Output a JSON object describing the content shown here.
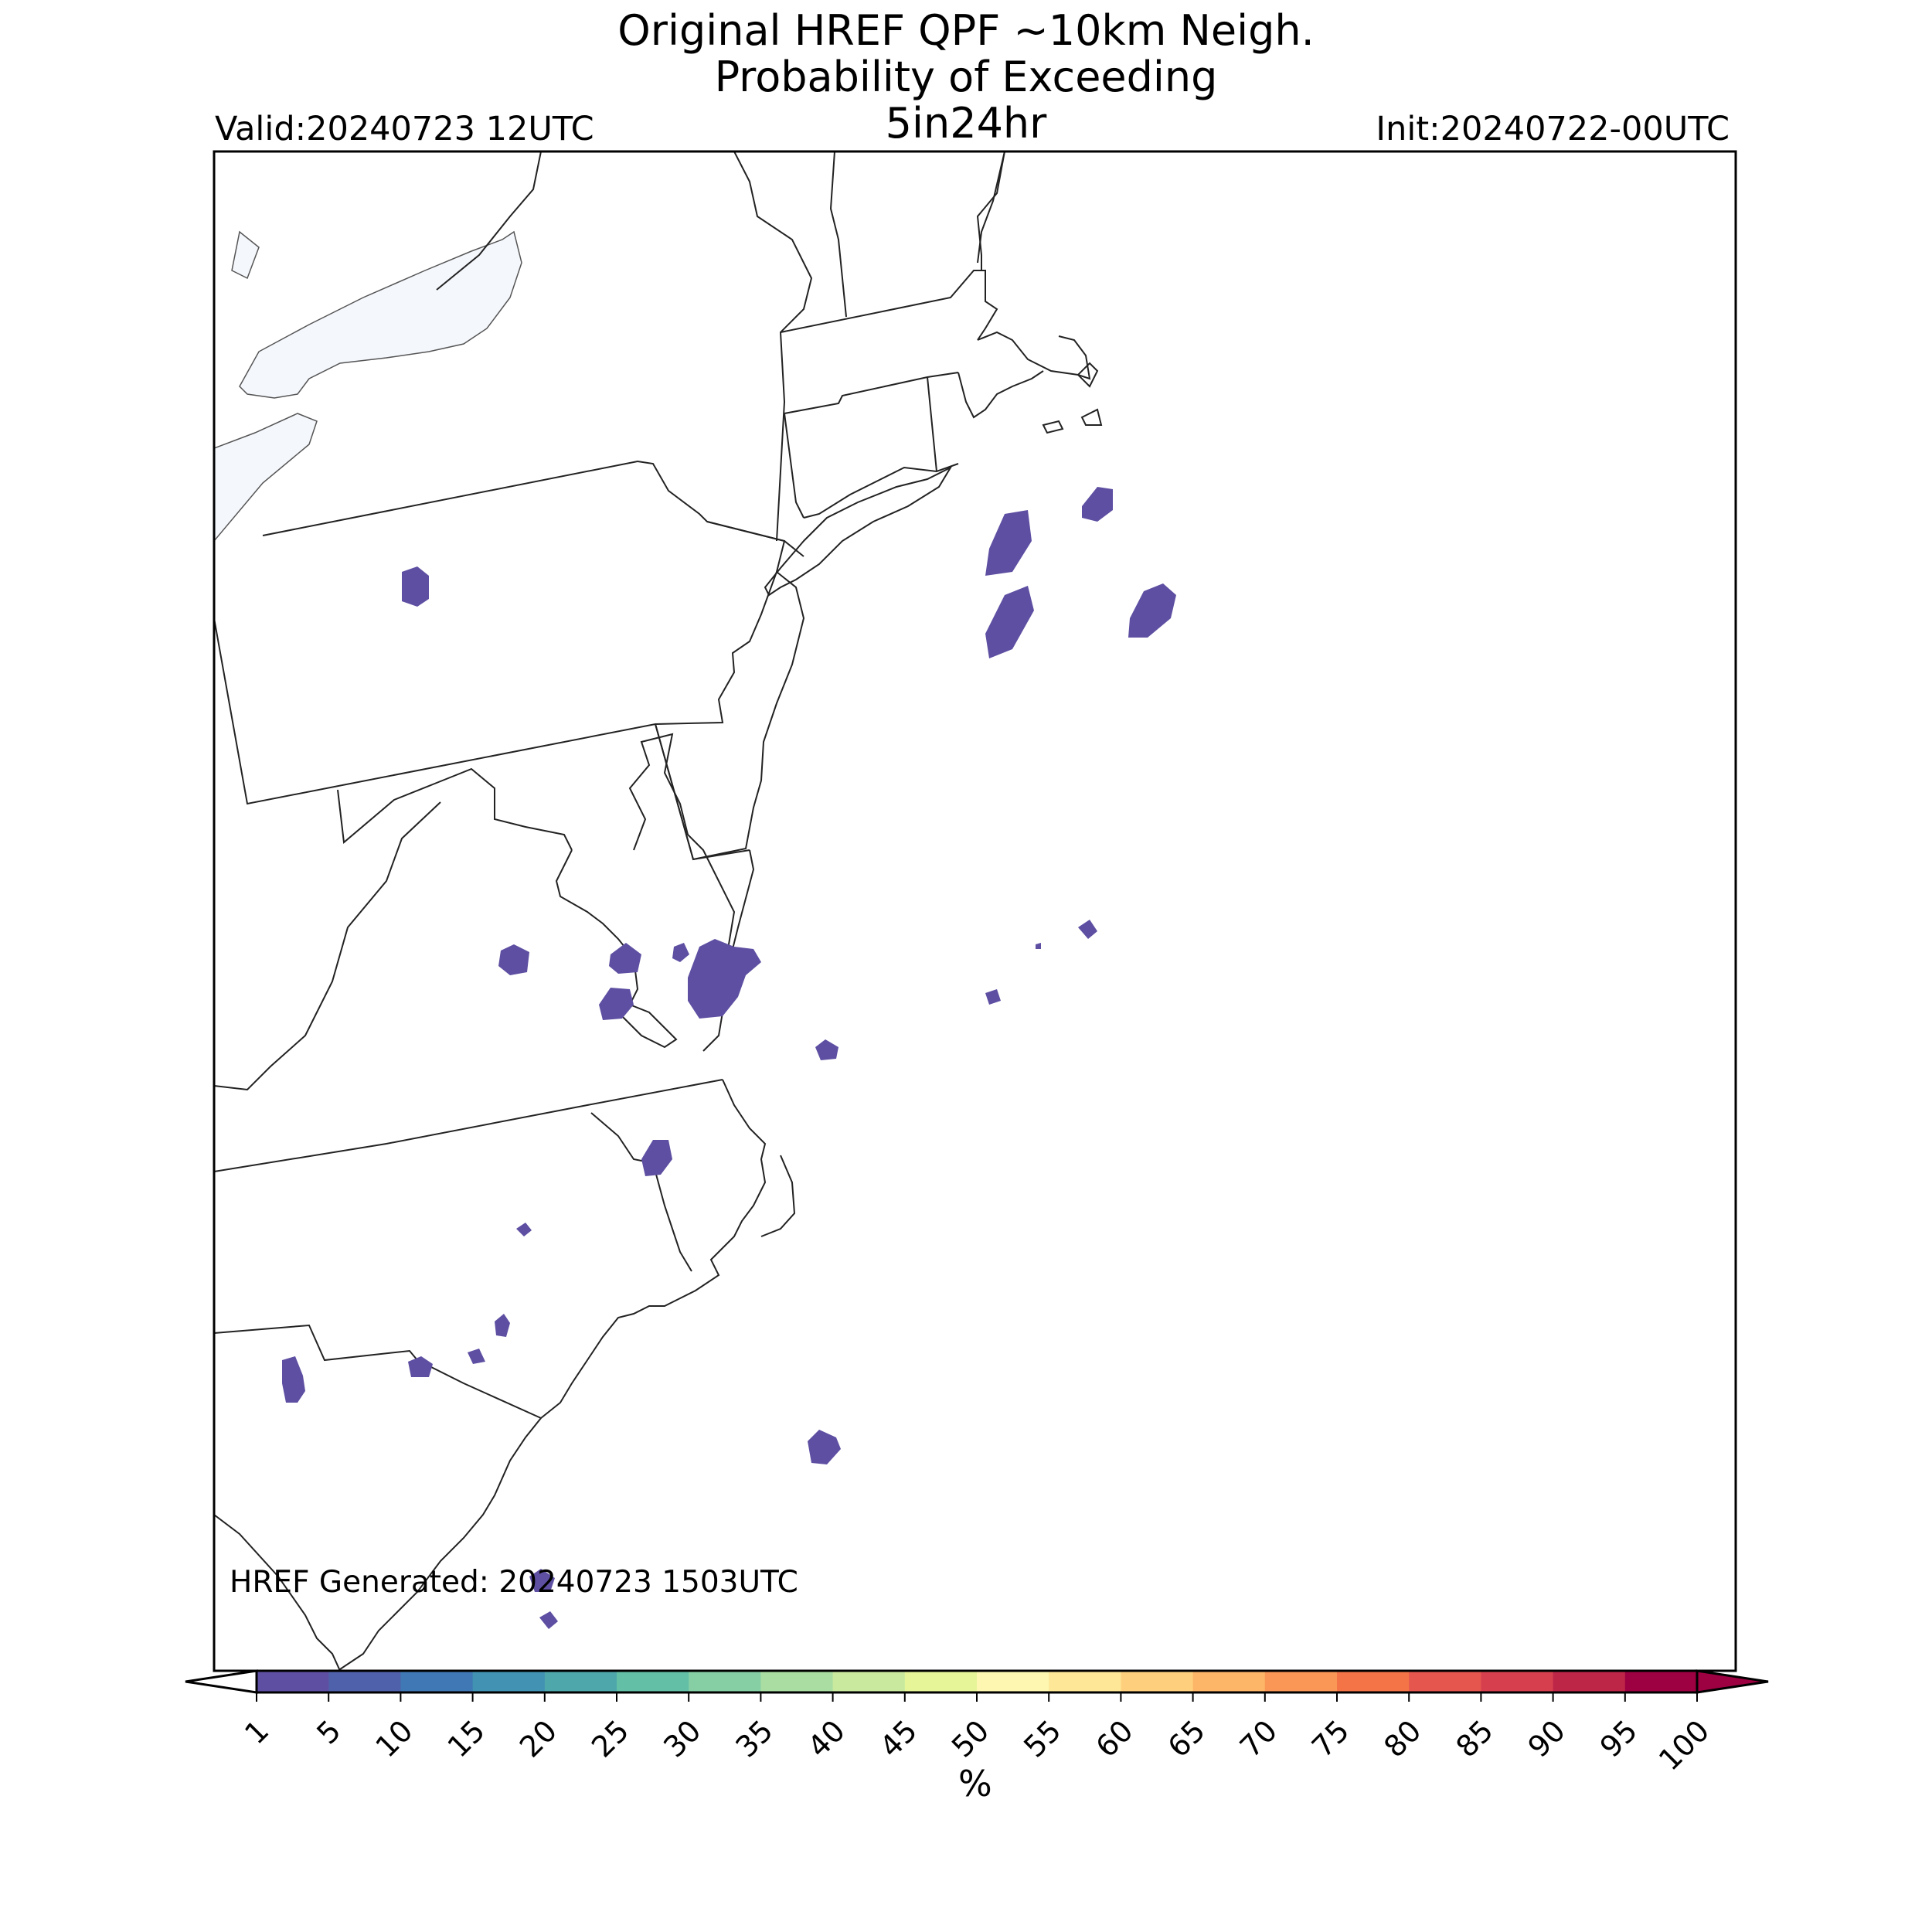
{
  "title": {
    "line1": "Original HREF QPF ~10km Neigh.",
    "line2": "Probability of Exceeding",
    "line3": "5in24hr"
  },
  "valid_text": "Valid:20240723 12UTC",
  "init_text": "Init:20240722-00UTC",
  "footer_text": "HREF Generated: 20240723 1503UTC",
  "colorbar": {
    "label": "%",
    "ticks": [
      "1",
      "5",
      "10",
      "15",
      "20",
      "25",
      "30",
      "35",
      "40",
      "45",
      "50",
      "55",
      "60",
      "65",
      "70",
      "75",
      "80",
      "85",
      "90",
      "95",
      "100"
    ],
    "colors": [
      "#5e4fa2",
      "#4f61aa",
      "#3f78b4",
      "#4292b3",
      "#4ea8ab",
      "#63bfa6",
      "#86cfa5",
      "#a9dda2",
      "#c9e99e",
      "#e6f598",
      "#fdf7b1",
      "#fee898",
      "#fed07e",
      "#fdb567",
      "#fa9656",
      "#f47447",
      "#e5564e",
      "#d6404e",
      "#be2648",
      "#9e0142"
    ],
    "under_color": "#ffffff",
    "over_color": "#9e0142"
  },
  "map": {
    "lake_color": "#f4f7fc",
    "precip_color": "#5e4fa2"
  }
}
